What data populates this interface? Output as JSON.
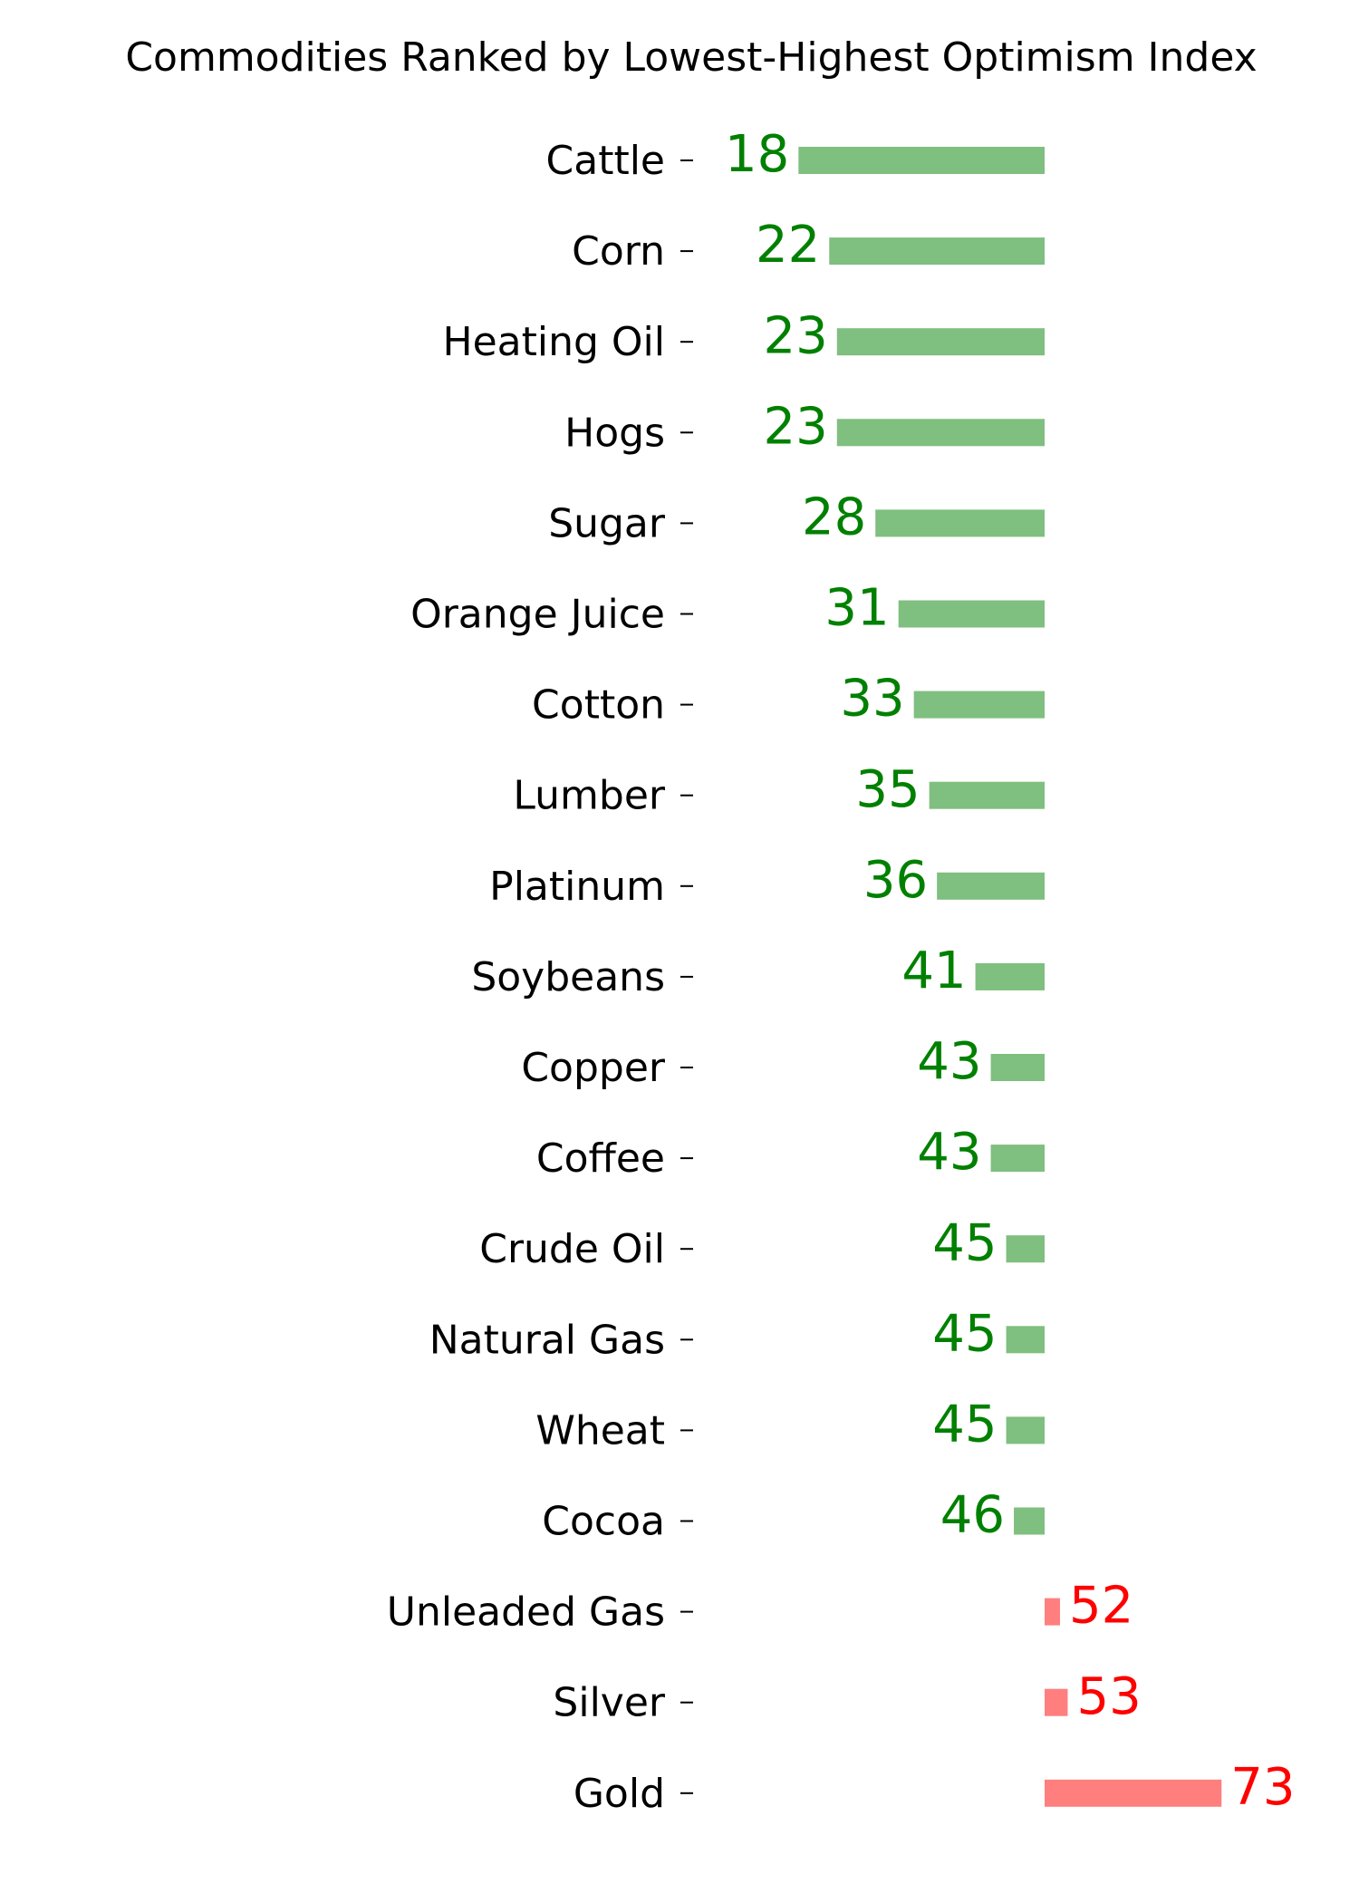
{
  "chart_data": {
    "type": "bar",
    "orientation": "horizontal",
    "title": "Commodities Ranked by Lowest-Highest Optimism Index",
    "categories": [
      "Cattle",
      "Corn",
      "Heating Oil",
      "Hogs",
      "Sugar",
      "Orange Juice",
      "Cotton",
      "Lumber",
      "Platinum",
      "Soybeans",
      "Copper",
      "Coffee",
      "Crude Oil",
      "Natural Gas",
      "Wheat",
      "Cocoa",
      "Unleaded Gas",
      "Silver",
      "Gold"
    ],
    "values": [
      18,
      22,
      23,
      23,
      28,
      31,
      33,
      35,
      36,
      41,
      43,
      43,
      45,
      45,
      45,
      46,
      52,
      53,
      73
    ],
    "baseline": 50,
    "color_below": "#008000",
    "color_above": "#ff0000"
  }
}
